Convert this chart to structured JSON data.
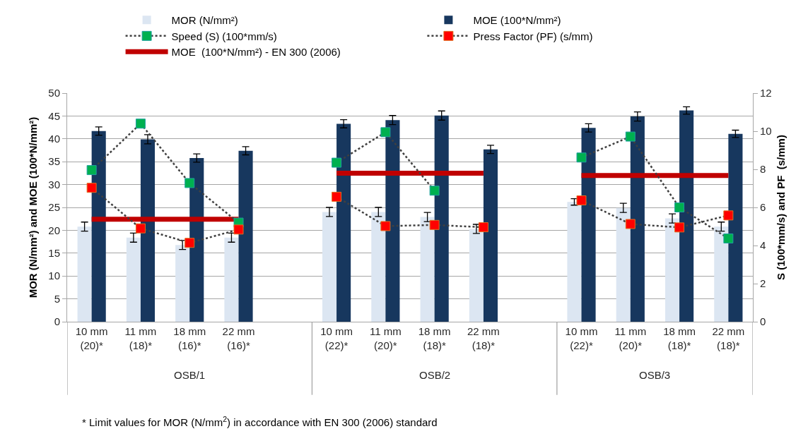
{
  "chart_data": {
    "type": "bar",
    "ylabel": "MOR (N/mm²) and MOE (100*N/mm²)",
    "y2label": "S (100*mm/s) and PF  (s/mm)",
    "categories": [
      "10 mm\n(20)*",
      "11 mm\n(18)*",
      "18 mm\n(16)*",
      "22 mm\n(16)*",
      null,
      "10 mm\n(22)*",
      "11 mm\n(20)*",
      "18 mm\n(18)*",
      "22 mm\n(18)*",
      null,
      "10 mm\n(22)*",
      "11 mm\n(20)*",
      "18 mm\n(18)*",
      "22 mm\n(18)*"
    ],
    "series": [
      {
        "name": "MOR (N/mm²)",
        "color": "#dce6f2",
        "values": [
          20.8,
          18.4,
          16.8,
          18.4,
          null,
          24.0,
          24.0,
          22.9,
          20.3,
          null,
          26.2,
          24.9,
          22.6,
          20.8
        ],
        "errors": [
          1.0,
          1.0,
          1.0,
          1.0,
          null,
          1.0,
          1.0,
          1.0,
          1.0,
          null,
          0.7,
          1.0,
          1.0,
          1.0
        ]
      },
      {
        "name": "MOE (100*N/mm²)",
        "color": "#17375e",
        "values": [
          41.7,
          39.9,
          35.8,
          37.4,
          null,
          43.3,
          44.1,
          45.1,
          37.7,
          null,
          42.4,
          44.9,
          46.2,
          41.1
        ],
        "errors": [
          0.9,
          1.0,
          0.9,
          0.9,
          null,
          0.9,
          1.0,
          1.0,
          0.9,
          null,
          0.9,
          1.0,
          0.8,
          0.8
        ]
      },
      {
        "name": "Speed (S) (100*mm/s)",
        "type": "line",
        "axis": "y2",
        "color": "#00b050",
        "marker": "square",
        "line_style": "dotted",
        "values": [
          7.96,
          10.4,
          7.28,
          5.2,
          null,
          8.35,
          9.95,
          6.88,
          null,
          null,
          8.62,
          9.72,
          6.0,
          4.37
        ]
      },
      {
        "name": "Press Factor (PF) (s/mm)",
        "type": "line",
        "axis": "y2",
        "color": "#ff0000",
        "marker": "square",
        "line_style": "dotted",
        "values": [
          7.03,
          4.9,
          4.14,
          4.84,
          null,
          6.56,
          5.02,
          5.08,
          4.96,
          null,
          6.37,
          5.13,
          4.95,
          5.58
        ]
      },
      {
        "name": "MOE  (100*N/mm²) - EN 300 (2006)",
        "type": "line",
        "color": "#c00000",
        "line_style": "solid",
        "values": [
          22.4,
          22.4,
          22.4,
          22.4,
          null,
          32.5,
          32.5,
          32.5,
          32.5,
          null,
          32.0,
          32.0,
          32.0,
          32.0
        ]
      }
    ],
    "ylim": [
      0,
      50
    ],
    "yticks": [
      0,
      5,
      10,
      15,
      20,
      25,
      30,
      35,
      40,
      45,
      50
    ],
    "y2lim": [
      0,
      12
    ],
    "y2ticks": [
      0,
      2,
      4,
      6,
      8,
      10,
      12
    ],
    "grid": "y",
    "legend": "top",
    "annotations": [
      "OSB/1",
      "OSB/2",
      "OSB/3",
      "* Limit values for MOR (N/mm$^{2}$) in accordance with EN 300 (2006) standard"
    ]
  }
}
